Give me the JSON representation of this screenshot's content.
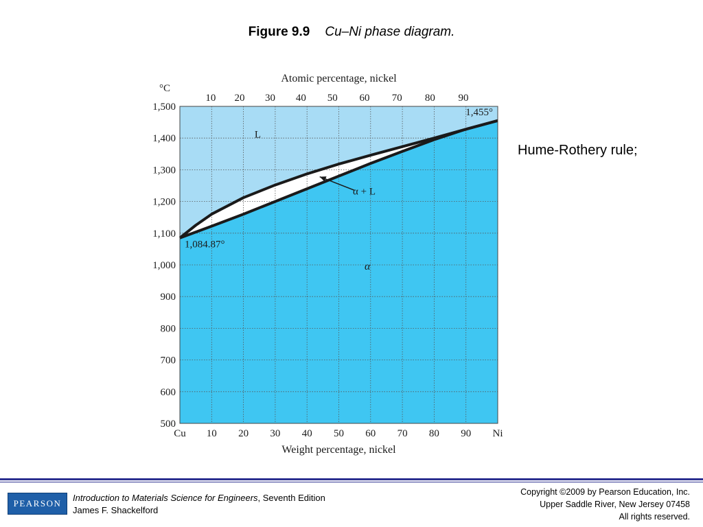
{
  "slide": {
    "figure_number": "Figure 9.9",
    "figure_caption": "Cu–Ni phase diagram.",
    "side_note": "Hume-Rothery rule;"
  },
  "footer": {
    "publisher_logo": "PEARSON",
    "book_title": "Introduction to Materials Science for Engineers",
    "book_edition": ", Seventh Edition",
    "author": "James F. Shackelford",
    "copyright_line1": "Copyright ©2009 by Pearson Education, Inc.",
    "copyright_line2": "Upper Saddle River, New Jersey 07458",
    "copyright_line3": "All rights reserved."
  },
  "chart_data": {
    "type": "area",
    "xlabel": "Weight percentage, nickel",
    "x2label": "Atomic percentage, nickel",
    "ylabel": "°C",
    "xlim": [
      0,
      100
    ],
    "ylim": [
      500,
      1500
    ],
    "grid": true,
    "x_ticks": [
      {
        "value": 0,
        "label": "Cu"
      },
      {
        "value": 10,
        "label": "10"
      },
      {
        "value": 20,
        "label": "20"
      },
      {
        "value": 30,
        "label": "30"
      },
      {
        "value": 40,
        "label": "40"
      },
      {
        "value": 50,
        "label": "50"
      },
      {
        "value": 60,
        "label": "60"
      },
      {
        "value": 70,
        "label": "70"
      },
      {
        "value": 80,
        "label": "80"
      },
      {
        "value": 90,
        "label": "90"
      },
      {
        "value": 100,
        "label": "Ni"
      }
    ],
    "y_ticks": [
      {
        "value": 500,
        "label": "500"
      },
      {
        "value": 600,
        "label": "600"
      },
      {
        "value": 700,
        "label": "700"
      },
      {
        "value": 800,
        "label": "800"
      },
      {
        "value": 900,
        "label": "900"
      },
      {
        "value": 1000,
        "label": "1,000"
      },
      {
        "value": 1100,
        "label": "1,100"
      },
      {
        "value": 1200,
        "label": "1,200"
      },
      {
        "value": 1300,
        "label": "1,300"
      },
      {
        "value": 1400,
        "label": "1,400"
      },
      {
        "value": 1500,
        "label": "1,500"
      }
    ],
    "top_ticks": [
      {
        "wt": 9.7,
        "label": "10"
      },
      {
        "wt": 18.8,
        "label": "20"
      },
      {
        "wt": 28.4,
        "label": "30"
      },
      {
        "wt": 38.1,
        "label": "40"
      },
      {
        "wt": 48.0,
        "label": "50"
      },
      {
        "wt": 58.1,
        "label": "60"
      },
      {
        "wt": 68.3,
        "label": "70"
      },
      {
        "wt": 78.7,
        "label": "80"
      },
      {
        "wt": 89.2,
        "label": "90"
      }
    ],
    "series": [
      {
        "name": "liquidus",
        "x": [
          0,
          5,
          10,
          20,
          30,
          40,
          50,
          60,
          70,
          80,
          90,
          100
        ],
        "y": [
          1085,
          1125,
          1160,
          1212,
          1252,
          1287,
          1318,
          1346,
          1373,
          1400,
          1428,
          1455
        ]
      },
      {
        "name": "solidus",
        "x": [
          0,
          10,
          20,
          30,
          40,
          50,
          60,
          70,
          80,
          90,
          100
        ],
        "y": [
          1085,
          1122,
          1160,
          1200,
          1240,
          1280,
          1320,
          1358,
          1395,
          1428,
          1455
        ]
      }
    ],
    "colors": {
      "liquid_region": "#a8dcf5",
      "solid_region": "#3fc6f2",
      "two_phase_region": "#ffffff",
      "boundary": "#1a1a1a",
      "grid": "#555555"
    },
    "annotations": {
      "liquid_label": "L",
      "two_phase_label": "α + L",
      "solid_label": "α",
      "cu_melting": "1,084.87°",
      "ni_melting": "1,455°"
    }
  }
}
